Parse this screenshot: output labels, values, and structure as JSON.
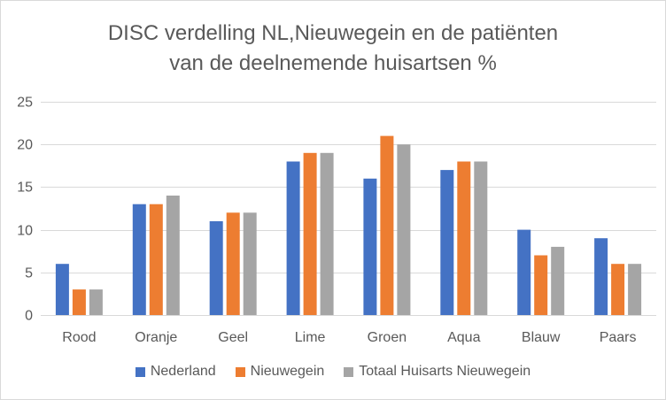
{
  "chart_data": {
    "type": "bar",
    "title": "DISC verdelling NL,Nieuwegein en de patiënten\nvan de deelnemende huisartsen %",
    "categories": [
      "Rood",
      "Oranje",
      "Geel",
      "Lime",
      "Groen",
      "Aqua",
      "Blauw",
      "Paars"
    ],
    "series": [
      {
        "name": "Nederland",
        "color": "#4472c4",
        "values": [
          6,
          13,
          11,
          18,
          16,
          17,
          10,
          9
        ]
      },
      {
        "name": "Nieuwegein",
        "color": "#ed7d31",
        "values": [
          3,
          13,
          12,
          19,
          21,
          18,
          7,
          6
        ]
      },
      {
        "name": "Totaal Huisarts Nieuwegein",
        "color": "#a5a5a5",
        "values": [
          3,
          14,
          12,
          19,
          20,
          18,
          8,
          6
        ]
      }
    ],
    "y_ticks": [
      "0",
      "5",
      "10",
      "15",
      "20",
      "25"
    ],
    "ylim": [
      0,
      25
    ],
    "grid": true,
    "legend_position": "bottom"
  }
}
